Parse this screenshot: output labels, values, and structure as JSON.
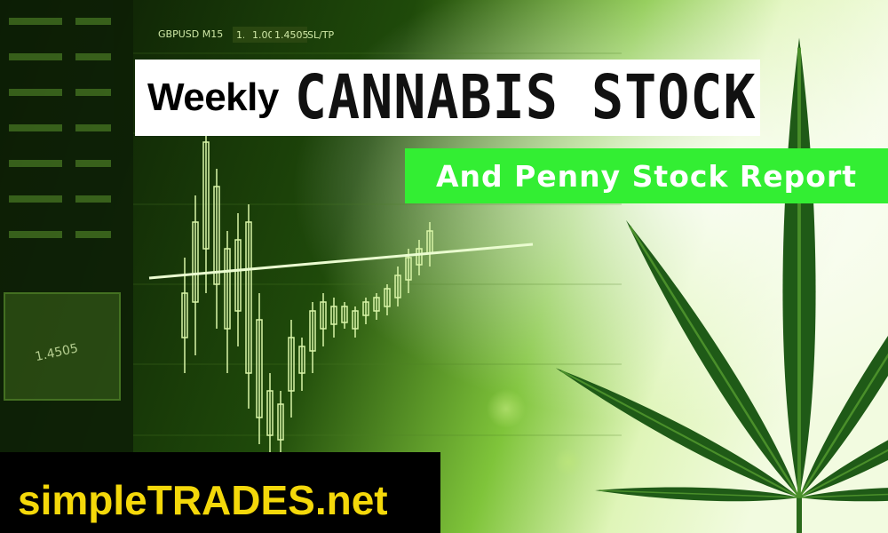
{
  "title": {
    "weekly": "Weekly",
    "main": "CANNABIS STOCK"
  },
  "subtitle": "And Penny Stock Report",
  "brand": "simpleTRADES.net",
  "chart_toolbar": {
    "symbol": "GBPUSD M15",
    "price_left": "1.4505",
    "lot": "1.00",
    "price_right": "1.4505",
    "sl_tp": "SL/TP"
  },
  "side_panel_value": "1.4505",
  "colors": {
    "title_bg": "#ffffff",
    "subtitle_bg": "#33ee33",
    "brand_bg": "#000000",
    "brand_text": "#f4d80a",
    "leaf": "#1f5a17"
  },
  "icons": [
    "cannabis-leaf-icon"
  ]
}
